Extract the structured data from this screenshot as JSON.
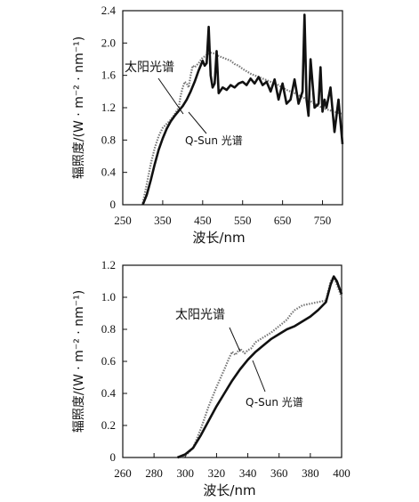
{
  "chart_data": [
    {
      "type": "line",
      "xlabel": "波长/nm",
      "ylabel": "辐照度/(W · m⁻² · nm⁻¹)",
      "xlim": [
        250,
        800
      ],
      "ylim": [
        0,
        2.4
      ],
      "xticks": [
        "250",
        "350",
        "450",
        "550",
        "650",
        "750"
      ],
      "yticks": [
        "0",
        "0.4",
        "0.8",
        "1.2",
        "1.6",
        "2.0",
        "2.4"
      ],
      "series": [
        {
          "name": "太阳光谱",
          "style": "dotted-gray",
          "x": [
            300,
            310,
            320,
            330,
            340,
            350,
            360,
            370,
            380,
            390,
            395,
            400,
            405,
            410,
            415,
            420,
            425,
            430,
            440,
            450,
            460,
            470,
            480,
            490,
            500,
            510,
            520,
            530,
            540,
            550,
            560,
            570,
            580,
            590,
            600,
            620,
            640,
            660,
            680,
            700,
            720,
            740,
            760,
            780,
            800
          ],
          "values": [
            0.02,
            0.25,
            0.5,
            0.7,
            0.85,
            0.95,
            1.0,
            1.05,
            1.12,
            1.2,
            1.35,
            1.45,
            1.52,
            1.5,
            1.45,
            1.6,
            1.72,
            1.7,
            1.75,
            1.82,
            1.85,
            1.88,
            1.87,
            1.84,
            1.82,
            1.8,
            1.78,
            1.74,
            1.72,
            1.68,
            1.65,
            1.62,
            1.6,
            1.58,
            1.56,
            1.52,
            1.48,
            1.42,
            1.38,
            1.33,
            1.28,
            1.22,
            1.18,
            1.15,
            1.12
          ]
        },
        {
          "name": "Q-Sun 光谱",
          "style": "solid-black",
          "x": [
            300,
            310,
            320,
            330,
            340,
            350,
            360,
            370,
            380,
            390,
            400,
            410,
            420,
            430,
            440,
            450,
            455,
            460,
            465,
            470,
            475,
            480,
            485,
            490,
            500,
            510,
            520,
            530,
            540,
            550,
            560,
            570,
            580,
            590,
            600,
            610,
            620,
            630,
            640,
            650,
            660,
            670,
            680,
            690,
            700,
            705,
            710,
            715,
            720,
            730,
            740,
            745,
            750,
            755,
            760,
            770,
            780,
            790,
            800
          ],
          "values": [
            0.0,
            0.12,
            0.3,
            0.5,
            0.68,
            0.82,
            0.94,
            1.03,
            1.1,
            1.16,
            1.22,
            1.3,
            1.4,
            1.52,
            1.66,
            1.78,
            1.72,
            1.75,
            2.2,
            1.6,
            1.45,
            1.5,
            1.9,
            1.38,
            1.45,
            1.42,
            1.48,
            1.45,
            1.5,
            1.52,
            1.48,
            1.56,
            1.5,
            1.58,
            1.48,
            1.52,
            1.4,
            1.55,
            1.3,
            1.5,
            1.25,
            1.3,
            1.55,
            1.25,
            1.4,
            2.35,
            1.3,
            1.1,
            1.8,
            1.2,
            1.25,
            1.7,
            1.15,
            1.3,
            1.2,
            1.45,
            0.9,
            1.3,
            0.75
          ]
        }
      ],
      "annotations": [
        {
          "text": "太阳光谱",
          "series": "太阳光谱"
        },
        {
          "text": "Q-Sun 光谱",
          "series": "Q-Sun 光谱"
        }
      ]
    },
    {
      "type": "line",
      "xlabel": "波长/nm",
      "ylabel": "辐照度/(W · m⁻² · nm⁻¹)",
      "xlim": [
        260,
        400
      ],
      "ylim": [
        0,
        1.2
      ],
      "xticks": [
        "260",
        "280",
        "300",
        "320",
        "340",
        "360",
        "380",
        "400"
      ],
      "yticks": [
        "0",
        "0.2",
        "0.4",
        "0.6",
        "0.8",
        "1.0",
        "1.2"
      ],
      "series": [
        {
          "name": "太阳光谱",
          "style": "dotted-gray",
          "x": [
            297,
            300,
            305,
            310,
            315,
            320,
            325,
            328,
            330,
            332,
            335,
            338,
            340,
            342,
            345,
            350,
            355,
            360,
            365,
            368,
            370,
            375,
            380,
            385,
            390,
            393,
            395,
            397,
            400
          ],
          "values": [
            0.0,
            0.01,
            0.06,
            0.18,
            0.32,
            0.44,
            0.55,
            0.62,
            0.66,
            0.64,
            0.68,
            0.65,
            0.67,
            0.68,
            0.72,
            0.75,
            0.78,
            0.82,
            0.86,
            0.9,
            0.92,
            0.95,
            0.96,
            0.97,
            0.98,
            1.1,
            1.13,
            1.08,
            1.0
          ]
        },
        {
          "name": "Q-Sun 光谱",
          "style": "solid-black",
          "x": [
            295,
            300,
            305,
            310,
            315,
            320,
            325,
            330,
            335,
            340,
            345,
            350,
            355,
            360,
            365,
            370,
            375,
            380,
            385,
            390,
            393,
            395,
            397,
            400
          ],
          "values": [
            0.0,
            0.02,
            0.06,
            0.14,
            0.23,
            0.32,
            0.4,
            0.48,
            0.55,
            0.61,
            0.66,
            0.7,
            0.74,
            0.77,
            0.8,
            0.82,
            0.85,
            0.88,
            0.92,
            0.97,
            1.08,
            1.13,
            1.1,
            1.02
          ]
        }
      ],
      "annotations": [
        {
          "text": "太阳光谱",
          "series": "太阳光谱"
        },
        {
          "text": "Q-Sun 光谱",
          "series": "Q-Sun 光谱"
        }
      ]
    }
  ]
}
